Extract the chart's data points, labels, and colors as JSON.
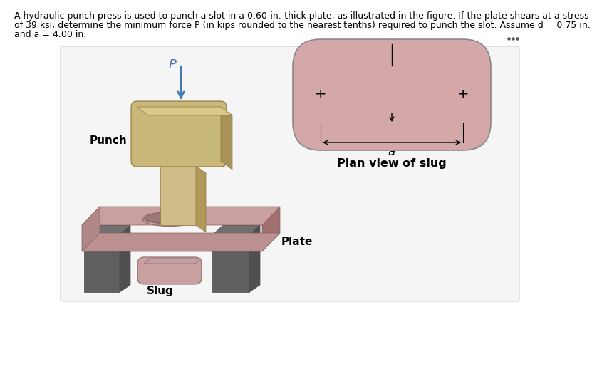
{
  "bg_color": "#ffffff",
  "panel_bg": "#f5f5f5",
  "panel_edge": "#cccccc",
  "title_lines": [
    "A hydraulic punch press is used to punch a slot in a 0.60-in.-thick plate, as illustrated in the figure. If the plate shears at a stress",
    "of 39 ksi, determine the minimum force P (in kips rounded to the nearest tenths) required to punch the slot. Assume d = 0.75 in.",
    "and a = 4.00 in."
  ],
  "title_fontsize": 9.0,
  "punch_head_color": "#c8b87a",
  "punch_head_dark": "#a89458",
  "punch_head_top": "#d8c88a",
  "punch_head_shadow": "#907840",
  "punch_shaft_color": "#d0bc88",
  "punch_shaft_dark": "#b09858",
  "plate_top_color": "#c8a0a0",
  "plate_face_color": "#b08888",
  "plate_side_color": "#a07070",
  "plate_dark_edge": "#886060",
  "slot_color": "#9a7878",
  "leg_color": "#606060",
  "leg_top_color": "#707070",
  "leg_dark": "#484848",
  "slug_top_color": "#c8a0a0",
  "slug_face_color": "#b08888",
  "slug_edge": "#906868",
  "arrow_color": "#4a7ab5",
  "label_color": "#111111",
  "plan_slug_fill": "#d4a8a8",
  "plan_slug_edge": "#888888",
  "dim_color": "#222222"
}
